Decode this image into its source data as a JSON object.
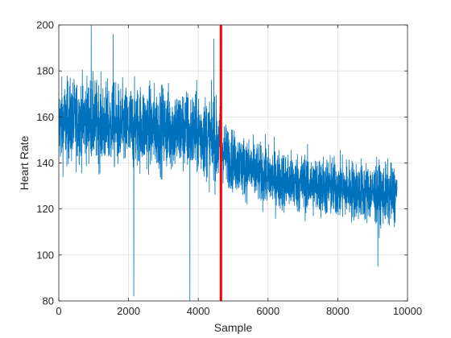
{
  "chart_data": {
    "type": "line",
    "xlabel": "Sample",
    "ylabel": "Heart Rate",
    "xlim": [
      0,
      10000
    ],
    "ylim": [
      80,
      200
    ],
    "xticks": [
      0,
      2000,
      4000,
      6000,
      8000,
      10000
    ],
    "yticks": [
      80,
      100,
      120,
      140,
      160,
      180,
      200
    ],
    "grid": true,
    "series_color": "#0072BD",
    "marker_line": {
      "x": 4650,
      "color": "#ff0000"
    },
    "sample_count": 9700,
    "series": [
      {
        "x": [
          0,
          400,
          800,
          1200,
          1600,
          2000,
          2400,
          2800,
          3200,
          3600,
          4000,
          4400,
          4650,
          5000,
          5500,
          6000,
          6500,
          7000,
          7500,
          8000,
          8500,
          9000,
          9500,
          9700
        ],
        "values": [
          157,
          158,
          159,
          157,
          156,
          155,
          156,
          155,
          155,
          154,
          153,
          150,
          146,
          141,
          137,
          134,
          132,
          131,
          130,
          129,
          128,
          127,
          126,
          127
        ]
      }
    ],
    "spikes": [
      {
        "x": 930,
        "y": 200
      },
      {
        "x": 1560,
        "y": 196
      },
      {
        "x": 2150,
        "y": 82
      },
      {
        "x": 3760,
        "y": 80
      },
      {
        "x": 4450,
        "y": 194
      },
      {
        "x": 9150,
        "y": 95
      }
    ]
  }
}
